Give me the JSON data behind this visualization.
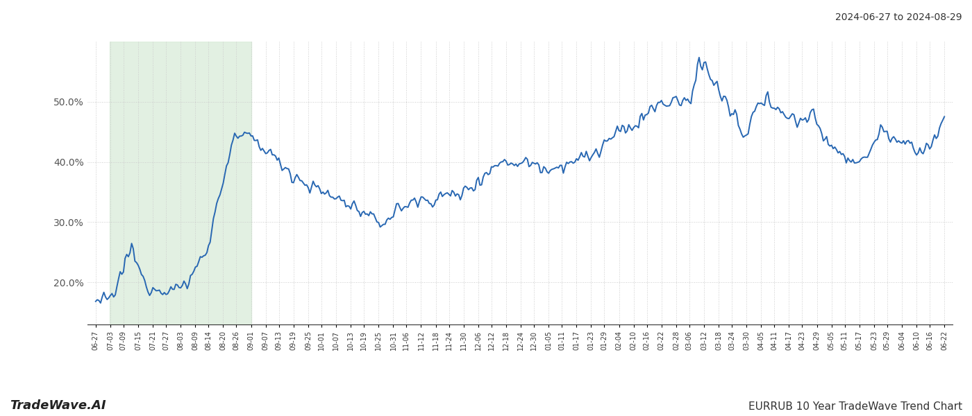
{
  "title_right": "2024-06-27 to 2024-08-29",
  "footer_left": "TradeWave.AI",
  "footer_right": "EURRUB 10 Year TradeWave Trend Chart",
  "ylim": [
    0.13,
    0.6
  ],
  "yticks": [
    0.2,
    0.3,
    0.4,
    0.5
  ],
  "line_color": "#2867b2",
  "line_width": 1.4,
  "shading_color": "#d6ead6",
  "shading_alpha": 0.7,
  "background_color": "#ffffff",
  "grid_color": "#cccccc",
  "grid_style": ":",
  "tick_labels": [
    "06-27",
    "07-03",
    "07-09",
    "07-15",
    "07-21",
    "07-27",
    "08-03",
    "08-09",
    "08-14",
    "08-20",
    "08-26",
    "09-01",
    "09-07",
    "09-13",
    "09-19",
    "09-25",
    "10-01",
    "10-07",
    "10-13",
    "10-19",
    "10-25",
    "10-31",
    "11-06",
    "11-12",
    "11-18",
    "11-24",
    "11-30",
    "12-06",
    "12-12",
    "12-18",
    "12-24",
    "12-30",
    "01-05",
    "01-11",
    "01-17",
    "01-23",
    "01-29",
    "02-04",
    "02-10",
    "02-16",
    "02-22",
    "02-28",
    "03-06",
    "03-12",
    "03-18",
    "03-24",
    "03-30",
    "04-05",
    "04-11",
    "04-17",
    "04-23",
    "04-29",
    "05-05",
    "05-11",
    "05-17",
    "05-23",
    "05-29",
    "06-04",
    "06-10",
    "06-16",
    "06-22"
  ],
  "shade_label_start": "07-03",
  "shade_label_end": "09-01",
  "num_points": 520
}
